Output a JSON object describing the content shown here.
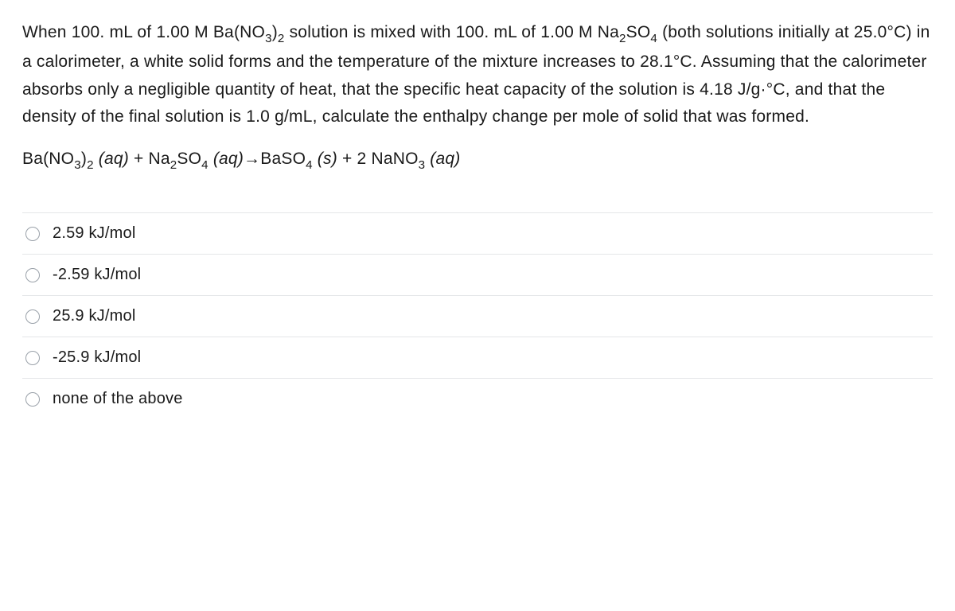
{
  "question": {
    "part1_before": "When 100. mL of 1.00 M Ba(NO",
    "part1_sub1": "3",
    "part1_mid1": ")",
    "part1_sub2": "2",
    "part1_mid2": " solution is mixed with 100. mL of 1.00 M Na",
    "part1_sub3": "2",
    "part1_mid3": "SO",
    "part1_sub4": "4",
    "part1_after": " (both solutions initially at 25.0°C) in a calorimeter, a white solid forms and the temperature of the mixture increases to 28.1°C. Assuming that the calorimeter absorbs only a negligible quantity of heat, that the specific heat capacity of the solution is 4.18 J/g·°C, and that the density of the final solution is 1.0 g/mL, calculate the enthalpy change per mole of solid that was formed."
  },
  "equation": {
    "r1_a": "Ba(NO",
    "r1_s1": "3",
    "r1_b": ")",
    "r1_s2": "2",
    "r1_state": " (aq)",
    "plus1": "  +  ",
    "r2_a": "Na",
    "r2_s1": "2",
    "r2_b": "SO",
    "r2_s2": "4",
    "r2_state": " (aq)",
    "arrow": "   →   ",
    "p1_a": "BaSO",
    "p1_s1": "4",
    "p1_state": " (s)",
    "plus2": "  +  ",
    "p2_coef": "2 ",
    "p2_a": "NaNO",
    "p2_s1": "3",
    "p2_state": " (aq)"
  },
  "options": [
    {
      "label": "2.59 kJ/mol"
    },
    {
      "label": "-2.59 kJ/mol"
    },
    {
      "label": "25.9 kJ/mol"
    },
    {
      "label": "-25.9 kJ/mol"
    },
    {
      "label": "none of the above"
    }
  ],
  "colors": {
    "text": "#1a1a1a",
    "border": "#e4e6e8",
    "radio_border": "#9aa1a9",
    "background": "#ffffff"
  },
  "typography": {
    "body_fontsize": 21,
    "option_fontsize": 20
  }
}
